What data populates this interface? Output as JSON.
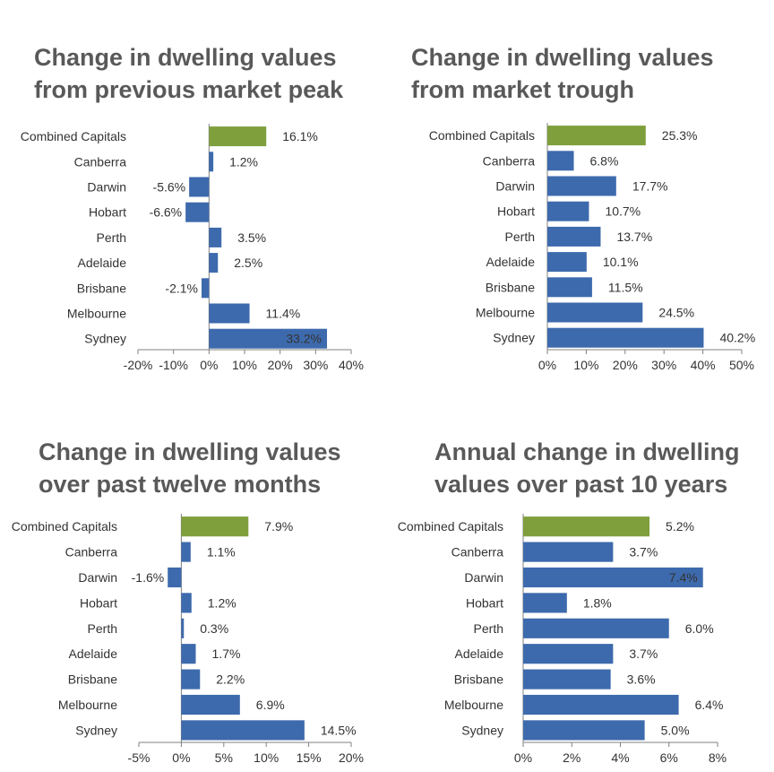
{
  "colors": {
    "bar": "#3d6aad",
    "highlight": "#7f9f3c",
    "axis": "#808080",
    "title": "#595959"
  },
  "chart_data": [
    {
      "type": "bar",
      "orientation": "horizontal",
      "title": [
        "Change in dwelling values",
        "from previous market peak"
      ],
      "categories": [
        "Combined Capitals",
        "Canberra",
        "Darwin",
        "Hobart",
        "Perth",
        "Adelaide",
        "Brisbane",
        "Melbourne",
        "Sydney"
      ],
      "values": [
        16.1,
        1.2,
        -5.6,
        -6.6,
        3.5,
        2.5,
        -2.1,
        11.4,
        33.2
      ],
      "data_labels": [
        "16.1%",
        "1.2%",
        "-5.6%",
        "-6.6%",
        "3.5%",
        "2.5%",
        "-2.1%",
        "11.4%",
        "33.2%"
      ],
      "xlim": [
        -20,
        40
      ],
      "ticks": [
        -20,
        -10,
        0,
        10,
        20,
        30,
        40
      ],
      "tick_labels": [
        "-20%",
        "-10%",
        "0%",
        "10%",
        "20%",
        "30%",
        "40%"
      ],
      "highlight_category": "Combined Capitals",
      "grid": false
    },
    {
      "type": "bar",
      "orientation": "horizontal",
      "title": [
        "Change in dwelling values",
        "from market trough"
      ],
      "categories": [
        "Combined Capitals",
        "Canberra",
        "Darwin",
        "Hobart",
        "Perth",
        "Adelaide",
        "Brisbane",
        "Melbourne",
        "Sydney"
      ],
      "values": [
        25.3,
        6.8,
        17.7,
        10.7,
        13.7,
        10.1,
        11.5,
        24.5,
        40.2
      ],
      "data_labels": [
        "25.3%",
        "6.8%",
        "17.7%",
        "10.7%",
        "13.7%",
        "10.1%",
        "11.5%",
        "24.5%",
        "40.2%"
      ],
      "xlim": [
        0,
        50
      ],
      "ticks": [
        0,
        10,
        20,
        30,
        40,
        50
      ],
      "tick_labels": [
        "0%",
        "10%",
        "20%",
        "30%",
        "40%",
        "50%"
      ],
      "highlight_category": "Combined Capitals",
      "grid": false
    },
    {
      "type": "bar",
      "orientation": "horizontal",
      "title": [
        "Change in dwelling values",
        "over past twelve months"
      ],
      "categories": [
        "Combined Capitals",
        "Canberra",
        "Darwin",
        "Hobart",
        "Perth",
        "Adelaide",
        "Brisbane",
        "Melbourne",
        "Sydney"
      ],
      "values": [
        7.9,
        1.1,
        -1.6,
        1.2,
        0.3,
        1.7,
        2.2,
        6.9,
        14.5
      ],
      "data_labels": [
        "7.9%",
        "1.1%",
        "-1.6%",
        "1.2%",
        "0.3%",
        "1.7%",
        "2.2%",
        "6.9%",
        "14.5%"
      ],
      "xlim": [
        -5,
        20
      ],
      "ticks": [
        -5,
        0,
        5,
        10,
        15,
        20
      ],
      "tick_labels": [
        "-5%",
        "0%",
        "5%",
        "10%",
        "15%",
        "20%"
      ],
      "highlight_category": "Combined Capitals",
      "grid": false
    },
    {
      "type": "bar",
      "orientation": "horizontal",
      "title": [
        "Annual change in dwelling",
        "values over past 10 years"
      ],
      "categories": [
        "Combined Capitals",
        "Canberra",
        "Darwin",
        "Hobart",
        "Perth",
        "Adelaide",
        "Brisbane",
        "Melbourne",
        "Sydney"
      ],
      "values": [
        5.2,
        3.7,
        7.4,
        1.8,
        6.0,
        3.7,
        3.6,
        6.4,
        5.0
      ],
      "data_labels": [
        "5.2%",
        "3.7%",
        "7.4%",
        "1.8%",
        "6.0%",
        "3.7%",
        "3.6%",
        "6.4%",
        "5.0%"
      ],
      "xlim": [
        0,
        8
      ],
      "ticks": [
        0,
        2,
        4,
        6,
        8
      ],
      "tick_labels": [
        "0%",
        "2%",
        "4%",
        "6%",
        "8%"
      ],
      "highlight_category": "Combined Capitals",
      "grid": false
    }
  ]
}
